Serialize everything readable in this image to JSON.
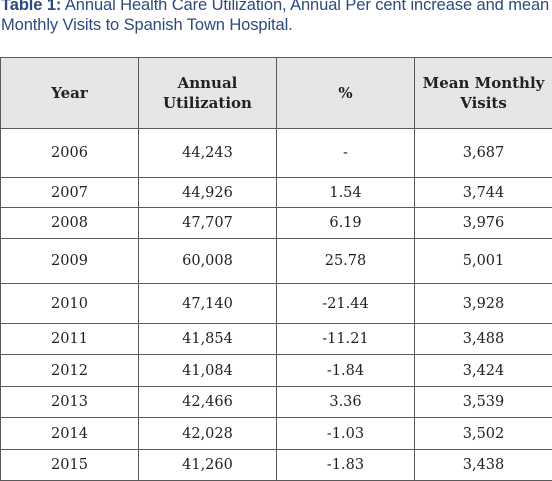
{
  "caption": {
    "label": "Table 1:",
    "text": " Annual Health Care Utilization, Annual Per cent increase and mean Monthly Visits to Spanish Town Hospital."
  },
  "table": {
    "headers": {
      "year": "Year",
      "annual_line1": "Annual",
      "annual_line2": "Utilization",
      "percent": "%",
      "mean_line1": "Mean Monthly",
      "mean_line2": "Visits"
    },
    "rows": [
      {
        "year": "2006",
        "annual": "44,243",
        "percent": "-",
        "mean": "3,687"
      },
      {
        "year": "2007",
        "annual": "44,926",
        "percent": "1.54",
        "mean": "3,744"
      },
      {
        "year": "2008",
        "annual": "47,707",
        "percent": "6.19",
        "mean": "3,976"
      },
      {
        "year": "2009",
        "annual": "60,008",
        "percent": "25.78",
        "mean": "5,001"
      },
      {
        "year": "2010",
        "annual": "47,140",
        "percent": "-21.44",
        "mean": "3,928"
      },
      {
        "year": "2011",
        "annual": "41,854",
        "percent": "-11.21",
        "mean": "3,488"
      },
      {
        "year": "2012",
        "annual": "41,084",
        "percent": "-1.84",
        "mean": "3,424"
      },
      {
        "year": "2013",
        "annual": "42,466",
        "percent": "3.36",
        "mean": "3,539"
      },
      {
        "year": "2014",
        "annual": "42,028",
        "percent": "-1.03",
        "mean": "3,502"
      },
      {
        "year": "2015",
        "annual": "41,260",
        "percent": "-1.83",
        "mean": "3,438"
      }
    ]
  }
}
